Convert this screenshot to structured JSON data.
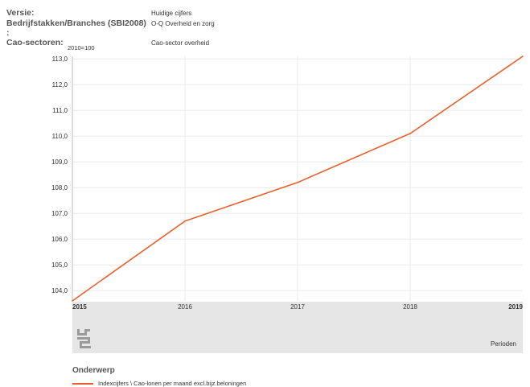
{
  "meta": {
    "rows": [
      {
        "key": "Versie:",
        "value": "Huidige cijfers"
      },
      {
        "key": "Bedrijfstakken/Branches (SBI2008) :",
        "value": "O-Q Overheid en zorg"
      },
      {
        "key": "Cao-sectoren:",
        "value": "Cao-sector overheid"
      }
    ]
  },
  "chart_data": {
    "type": "line",
    "ylabel": "2010=100",
    "xlabel": "Perioden",
    "categories": [
      "2015",
      "2016",
      "2017",
      "2018",
      "2019"
    ],
    "series": [
      {
        "name": "Indexcijfers \\ Cao-lonen per maand excl.bijz.beloningen",
        "values": [
          103.6,
          106.7,
          108.2,
          110.1,
          113.1
        ]
      }
    ],
    "ylim": [
      103.6,
      113.1
    ],
    "yticks": [
      "104,0",
      "105,0",
      "106,0",
      "107,0",
      "108,0",
      "109,0",
      "110,0",
      "111,0",
      "112,0",
      "113,0"
    ],
    "grid": true,
    "legend_title": "Onderwerp",
    "legend_position": "bottom-left",
    "series_color": "#e8612c"
  }
}
